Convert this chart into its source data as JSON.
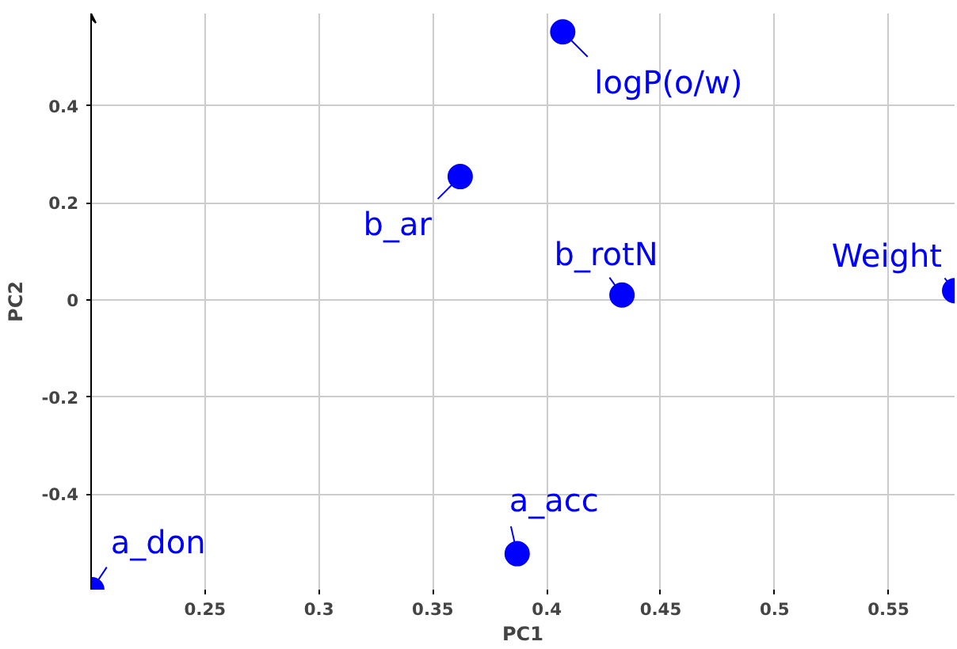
{
  "chart_data": {
    "type": "scatter",
    "xlabel": "PC1",
    "ylabel": "PC2",
    "xlim": [
      0.2,
      0.579
    ],
    "ylim": [
      -0.597,
      0.59
    ],
    "xticks": [
      0.25,
      0.3,
      0.35,
      0.4,
      0.45,
      0.5,
      0.55
    ],
    "yticks": [
      -0.4,
      -0.2,
      0,
      0.2,
      0.4
    ],
    "grid": true,
    "marker": "circle",
    "series": [
      {
        "color": "#0000ff",
        "x": [
          0.2003,
          0.362,
          0.387,
          0.407,
          0.433,
          0.579
        ],
        "values": [
          -0.597,
          0.254,
          -0.523,
          0.552,
          0.01,
          0.019
        ]
      }
    ],
    "annotations": [
      {
        "text": "a_don",
        "x": 0.2003,
        "y": -0.597
      },
      {
        "text": "b_ar",
        "x": 0.362,
        "y": 0.254
      },
      {
        "text": "a_acc",
        "x": 0.387,
        "y": -0.523
      },
      {
        "text": "logP(o/w)",
        "x": 0.407,
        "y": 0.552
      },
      {
        "text": "b_rotN",
        "x": 0.433,
        "y": 0.01
      },
      {
        "text": "Weight",
        "x": 0.579,
        "y": 0.019
      }
    ]
  }
}
